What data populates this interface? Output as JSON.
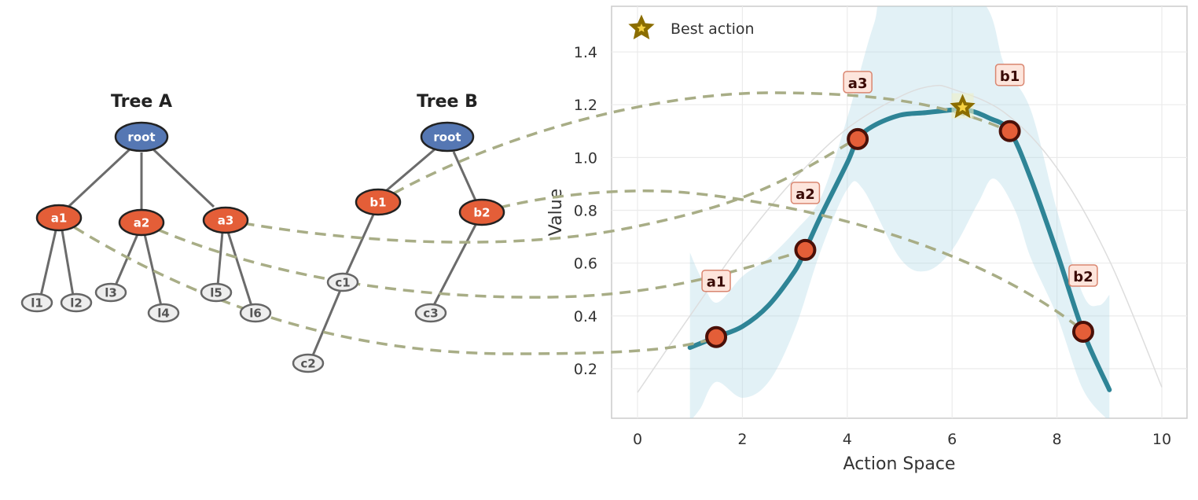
{
  "trees": {
    "tree_a": {
      "title": "Tree A",
      "root": "root",
      "children": [
        "a1",
        "a2",
        "a3"
      ],
      "leaves": [
        "l1",
        "l2",
        "l3",
        "l4",
        "l5",
        "l6"
      ]
    },
    "tree_b": {
      "title": "Tree B",
      "root": "root",
      "children": [
        "b1",
        "b2"
      ],
      "leaves": [
        "c1",
        "c2",
        "c3"
      ]
    }
  },
  "colors": {
    "root": "#5577b3",
    "action": "#e45e38",
    "leaf": "#eeeeee",
    "mean": "#2e8496",
    "band": "#add8e6",
    "connector": "#a8ad86",
    "star": "#8b6d00",
    "true_fn": "#dddddd"
  },
  "chart_data": {
    "type": "line",
    "xlabel": "Action Space",
    "ylabel": "Value",
    "xlim": [
      -0.5,
      10.5
    ],
    "ylim": [
      0.01,
      1.57
    ],
    "xticks": [
      0,
      2,
      4,
      6,
      8,
      10
    ],
    "yticks": [
      0.2,
      0.4,
      0.6,
      0.8,
      1.0,
      1.2,
      1.4
    ],
    "ytick_labels": [
      "0.2",
      "0.4",
      "0.6",
      "0.8",
      "1.0",
      "1.2",
      "1.4"
    ],
    "grid": true,
    "legend": {
      "position": "top-left",
      "entries": [
        "Best action"
      ]
    },
    "true_function": {
      "x": [
        0,
        1,
        2,
        3,
        4,
        5,
        5.6,
        6,
        7,
        8,
        9,
        10
      ],
      "y": [
        0.11,
        0.4,
        0.68,
        0.92,
        1.11,
        1.23,
        1.27,
        1.26,
        1.17,
        0.96,
        0.61,
        0.13
      ]
    },
    "mean": {
      "x": [
        1,
        1.5,
        2,
        2.5,
        3,
        3.2,
        3.5,
        4,
        4.2,
        4.5,
        5,
        5.5,
        6,
        6.3,
        6.7,
        7.1,
        7.5,
        8,
        8.5,
        9
      ],
      "y": [
        0.28,
        0.32,
        0.36,
        0.44,
        0.57,
        0.65,
        0.78,
        0.98,
        1.07,
        1.12,
        1.16,
        1.17,
        1.18,
        1.18,
        1.15,
        1.1,
        0.92,
        0.64,
        0.34,
        0.12
      ]
    },
    "band_upper": {
      "x": [
        1,
        1.2,
        1.5,
        2,
        2.5,
        3,
        3.5,
        4,
        4.5,
        4.8,
        6.5,
        7,
        7.5,
        8,
        8.5,
        8.8,
        9
      ],
      "y": [
        0.64,
        0.55,
        0.45,
        0.55,
        0.62,
        0.72,
        0.85,
        1.15,
        1.5,
        1.6,
        1.6,
        1.35,
        1.18,
        0.8,
        0.48,
        0.44,
        0.48
      ]
    },
    "band_lower": {
      "x": [
        1,
        1.2,
        1.5,
        2,
        2.5,
        3,
        3.5,
        4,
        4.3,
        5,
        5.5,
        6,
        6.5,
        6.8,
        7.2,
        7.5,
        8,
        8.5,
        9
      ],
      "y": [
        0.0,
        0.05,
        0.15,
        0.09,
        0.15,
        0.35,
        0.65,
        0.88,
        0.88,
        0.62,
        0.57,
        0.65,
        0.83,
        0.92,
        0.8,
        0.62,
        0.4,
        0.12,
        0.0
      ]
    },
    "points": [
      {
        "label": "a1",
        "x": 1.5,
        "y": 0.32
      },
      {
        "label": "a2",
        "x": 3.2,
        "y": 0.65
      },
      {
        "label": "a3",
        "x": 4.2,
        "y": 1.07
      },
      {
        "label": "b1",
        "x": 7.1,
        "y": 1.1
      },
      {
        "label": "b2",
        "x": 8.5,
        "y": 0.34
      }
    ],
    "best_action": {
      "x": 6.2,
      "y": 1.19,
      "label": "Best action"
    }
  }
}
